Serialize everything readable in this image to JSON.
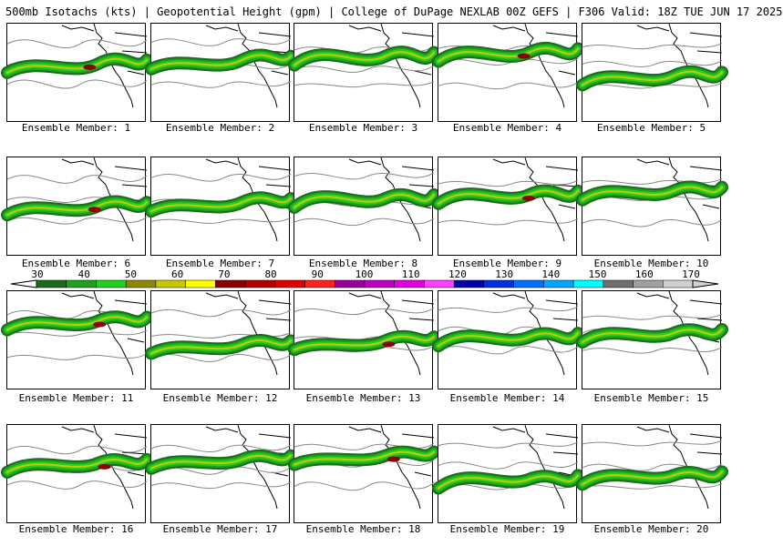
{
  "header": {
    "title": "500mb Isotachs (kts) | Geopotential Height (gpm) | College of DuPage NEXLAB   00Z GEFS | F306 Valid: 18Z TUE JUN 17 2025"
  },
  "members": [
    {
      "label": "Ensemble Member: 1"
    },
    {
      "label": "Ensemble Member: 2"
    },
    {
      "label": "Ensemble Member: 3"
    },
    {
      "label": "Ensemble Member: 4"
    },
    {
      "label": "Ensemble Member: 5"
    },
    {
      "label": "Ensemble Member: 6"
    },
    {
      "label": "Ensemble Member: 7"
    },
    {
      "label": "Ensemble Member: 8"
    },
    {
      "label": "Ensemble Member: 9"
    },
    {
      "label": "Ensemble Member: 10"
    },
    {
      "label": "Ensemble Member: 11"
    },
    {
      "label": "Ensemble Member: 12"
    },
    {
      "label": "Ensemble Member: 13"
    },
    {
      "label": "Ensemble Member: 14"
    },
    {
      "label": "Ensemble Member: 15"
    },
    {
      "label": "Ensemble Member: 16"
    },
    {
      "label": "Ensemble Member: 17"
    },
    {
      "label": "Ensemble Member: 18"
    },
    {
      "label": "Ensemble Member: 19"
    },
    {
      "label": "Ensemble Member: 20"
    }
  ],
  "legend": {
    "ticks": [
      "30",
      "40",
      "50",
      "60",
      "70",
      "80",
      "90",
      "100",
      "110",
      "120",
      "130",
      "140",
      "150",
      "160",
      "170"
    ],
    "colors": [
      "#1a6b1a",
      "#1fa01f",
      "#22d022",
      "#8a8a00",
      "#c8c800",
      "#ffff00",
      "#8b0000",
      "#b00000",
      "#dd0000",
      "#ff2020",
      "#9a009a",
      "#c000c0",
      "#e000e0",
      "#ff40ff",
      "#0000aa",
      "#0030dd",
      "#0070ff",
      "#00a8ff",
      "#00ffff",
      "#707070",
      "#a0a0a0",
      "#d0d0d0"
    ]
  }
}
